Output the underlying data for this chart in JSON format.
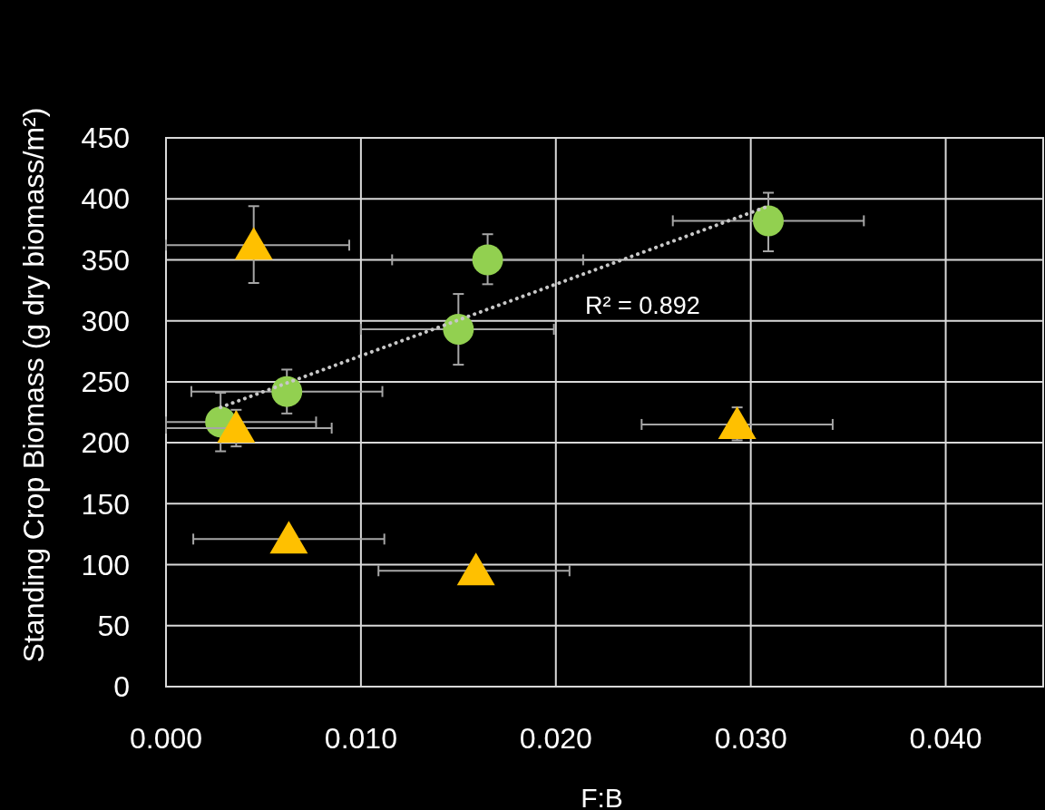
{
  "chart_data": {
    "type": "scatter",
    "xlabel": "F:B",
    "ylabel": "Standing Crop Biomass (g dry biomass/m²)",
    "xlim": [
      0,
      0.045
    ],
    "xticks": [
      {
        "value": 0,
        "label": "0.000"
      },
      {
        "value": 0.01,
        "label": "0.010"
      },
      {
        "value": 0.02,
        "label": "0.020"
      },
      {
        "value": 0.03,
        "label": "0.030"
      },
      {
        "value": 0.04,
        "label": "0.040"
      }
    ],
    "ylim": [
      0,
      450
    ],
    "yticks": [
      0,
      50,
      100,
      150,
      200,
      250,
      300,
      350,
      400,
      450
    ],
    "grid": true,
    "annotations": [
      "R² = 0.892"
    ],
    "series": [
      {
        "color": "#92d050",
        "marker": "circle",
        "x": [
          0.0028,
          0.0062,
          0.015,
          0.0165,
          0.0309
        ],
        "values": [
          217,
          242,
          293,
          350,
          382
        ],
        "errors": [
          [
            193,
            241
          ],
          [
            224,
            260
          ],
          [
            264,
            322
          ],
          [
            330,
            371
          ],
          [
            357,
            405
          ]
        ],
        "xerrors": [
          [
            0,
            0.0077
          ],
          [
            0.0013,
            0.0111
          ],
          [
            0.01,
            0.0199
          ],
          [
            0.0116,
            0.0214
          ],
          [
            0.026,
            0.0358
          ]
        ]
      },
      {
        "color": "#ffc000",
        "marker": "triangle",
        "x": [
          0.0045,
          0.0036,
          0.0063,
          0.0159,
          0.0293
        ],
        "values": [
          362,
          212,
          121,
          95,
          215
        ],
        "errors": [
          [
            331,
            394
          ],
          [
            197,
            227
          ],
          null,
          null,
          [
            202,
            229
          ]
        ],
        "xerrors": [
          [
            0,
            0.0094
          ],
          [
            0,
            0.0085
          ],
          [
            0.0014,
            0.0112
          ],
          [
            0.0109,
            0.0207
          ],
          [
            0.0244,
            0.0342
          ]
        ]
      },
      {
        "type": "line",
        "color": "#c8c8c8",
        "line_style": "dotted",
        "x": [
          0.0028,
          0.0309
        ],
        "values": [
          229,
          394
        ]
      }
    ]
  }
}
